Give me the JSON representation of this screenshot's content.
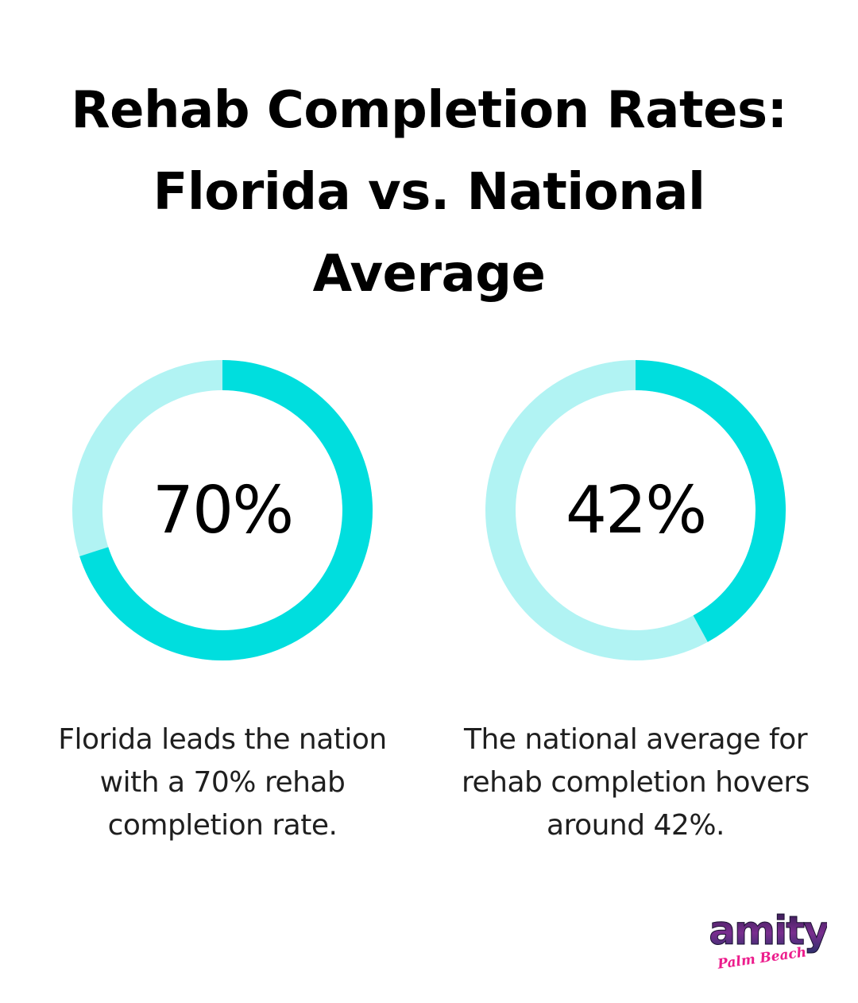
{
  "title_lines": [
    "Rehab Completion Rates:",
    "Florida vs. National",
    "Average"
  ],
  "colors": {
    "filled": "#00DEDE",
    "remainder": "#B1F3F3",
    "text": "#000000",
    "logo_accent": "#EC1C8C"
  },
  "chart_data": [
    {
      "type": "pie",
      "variant": "donut",
      "label": "70%",
      "value": 70,
      "max": 100,
      "caption_lines": [
        "Florida leads the nation",
        "with a 70% rehab",
        "completion rate."
      ]
    },
    {
      "type": "pie",
      "variant": "donut",
      "label": "42%",
      "value": 42,
      "max": 100,
      "caption_lines": [
        "The national average for",
        "rehab completion hovers",
        "around 42%."
      ]
    }
  ],
  "logo": {
    "word": "amity",
    "script": "Palm Beach"
  }
}
